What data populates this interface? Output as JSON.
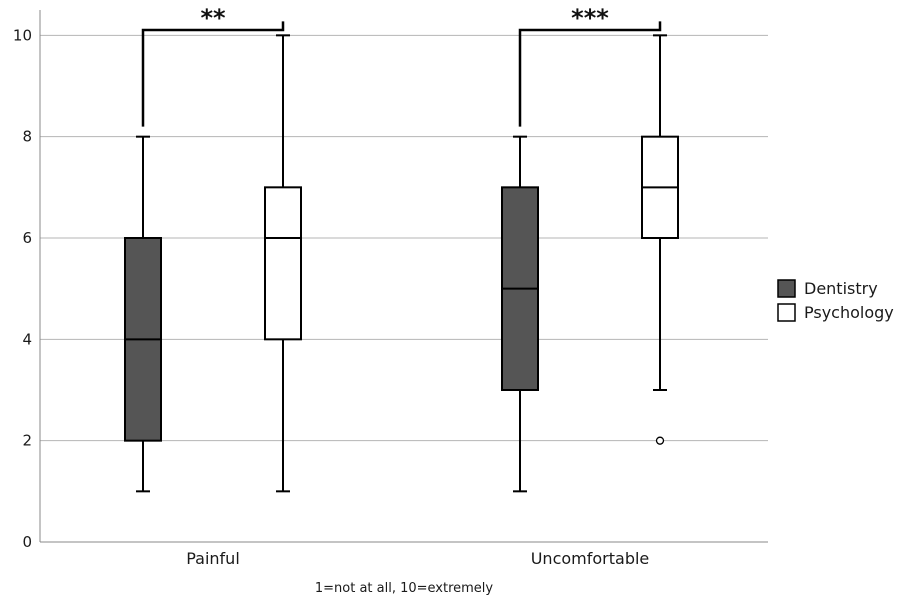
{
  "chart_data": {
    "type": "box",
    "title": "",
    "xlabel": "1=not at all, 10=extremely",
    "ylabel": "",
    "ylim": [
      0,
      10.5
    ],
    "yticks": [
      0,
      2,
      4,
      6,
      8,
      10
    ],
    "grid": true,
    "legend_position": "right",
    "categories": [
      "Painful",
      "Uncomfortable"
    ],
    "series": [
      {
        "name": "Dentistry",
        "color": "#555555",
        "boxes": [
          {
            "min": 1,
            "q1": 2,
            "median": 4,
            "q3": 6,
            "max": 8,
            "outliers": []
          },
          {
            "min": 1,
            "q1": 3,
            "median": 5,
            "q3": 7,
            "max": 8,
            "outliers": []
          }
        ]
      },
      {
        "name": "Psychology",
        "color": "#ffffff",
        "boxes": [
          {
            "min": 1,
            "q1": 4,
            "median": 6,
            "q3": 7,
            "max": 10,
            "outliers": []
          },
          {
            "min": 3,
            "q1": 6,
            "median": 7,
            "q3": 8,
            "max": 10,
            "outliers": [
              2
            ]
          }
        ]
      }
    ],
    "significance": [
      {
        "category": "Painful",
        "label": "**"
      },
      {
        "category": "Uncomfortable",
        "label": "***"
      }
    ]
  }
}
